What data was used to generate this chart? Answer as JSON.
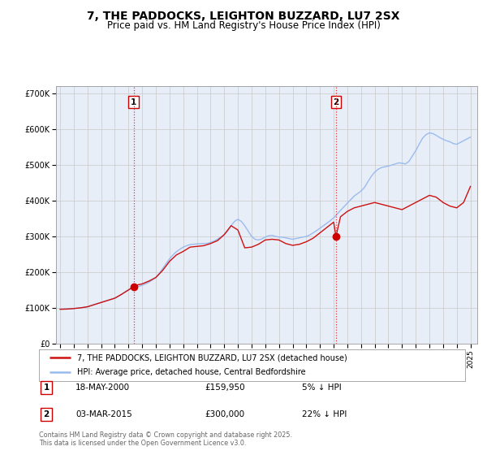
{
  "title": "7, THE PADDOCKS, LEIGHTON BUZZARD, LU7 2SX",
  "subtitle": "Price paid vs. HM Land Registry's House Price Index (HPI)",
  "title_fontsize": 10,
  "subtitle_fontsize": 8.5,
  "background_color": "#ffffff",
  "plot_bg_color": "#e8eef8",
  "grid_color": "#c8c8c8",
  "ylabel_values": [
    "£0",
    "£100K",
    "£200K",
    "£300K",
    "£400K",
    "£500K",
    "£600K",
    "£700K"
  ],
  "ytick_values": [
    0,
    100000,
    200000,
    300000,
    400000,
    500000,
    600000,
    700000
  ],
  "ylim": [
    0,
    720000
  ],
  "xlim_start": 1994.7,
  "xlim_end": 2025.5,
  "purchase1_x": 2000.38,
  "purchase1_y": 159950,
  "purchase1_label": "1",
  "purchase2_x": 2015.17,
  "purchase2_y": 300000,
  "purchase2_label": "2",
  "vline_color": "#ee3333",
  "vline_style": ":",
  "dot_color": "#cc0000",
  "dot_size": 6,
  "hpi_line_color": "#99bbee",
  "price_line_color": "#cc1111",
  "legend_label_price": "7, THE PADDOCKS, LEIGHTON BUZZARD, LU7 2SX (detached house)",
  "legend_label_hpi": "HPI: Average price, detached house, Central Bedfordshire",
  "annotation1_date": "18-MAY-2000",
  "annotation1_price": "£159,950",
  "annotation1_hpi": "5% ↓ HPI",
  "annotation2_date": "03-MAR-2015",
  "annotation2_price": "£300,000",
  "annotation2_hpi": "22% ↓ HPI",
  "footer_text": "Contains HM Land Registry data © Crown copyright and database right 2025.\nThis data is licensed under the Open Government Licence v3.0.",
  "hpi_data": {
    "years": [
      1995.0,
      1995.25,
      1995.5,
      1995.75,
      1996.0,
      1996.25,
      1996.5,
      1996.75,
      1997.0,
      1997.25,
      1997.5,
      1997.75,
      1998.0,
      1998.25,
      1998.5,
      1998.75,
      1999.0,
      1999.25,
      1999.5,
      1999.75,
      2000.0,
      2000.25,
      2000.5,
      2000.75,
      2001.0,
      2001.25,
      2001.5,
      2001.75,
      2002.0,
      2002.25,
      2002.5,
      2002.75,
      2003.0,
      2003.25,
      2003.5,
      2003.75,
      2004.0,
      2004.25,
      2004.5,
      2004.75,
      2005.0,
      2005.25,
      2005.5,
      2005.75,
      2006.0,
      2006.25,
      2006.5,
      2006.75,
      2007.0,
      2007.25,
      2007.5,
      2007.75,
      2008.0,
      2008.25,
      2008.5,
      2008.75,
      2009.0,
      2009.25,
      2009.5,
      2009.75,
      2010.0,
      2010.25,
      2010.5,
      2010.75,
      2011.0,
      2011.25,
      2011.5,
      2011.75,
      2012.0,
      2012.25,
      2012.5,
      2012.75,
      2013.0,
      2013.25,
      2013.5,
      2013.75,
      2014.0,
      2014.25,
      2014.5,
      2014.75,
      2015.0,
      2015.25,
      2015.5,
      2015.75,
      2016.0,
      2016.25,
      2016.5,
      2016.75,
      2017.0,
      2017.25,
      2017.5,
      2017.75,
      2018.0,
      2018.25,
      2018.5,
      2018.75,
      2019.0,
      2019.25,
      2019.5,
      2019.75,
      2020.0,
      2020.25,
      2020.5,
      2020.75,
      2021.0,
      2021.25,
      2021.5,
      2021.75,
      2022.0,
      2022.25,
      2022.5,
      2022.75,
      2023.0,
      2023.25,
      2023.5,
      2023.75,
      2024.0,
      2024.25,
      2024.5,
      2024.75,
      2025.0
    ],
    "values": [
      96000,
      96500,
      97000,
      97500,
      98000,
      99000,
      100000,
      101000,
      103000,
      106000,
      109000,
      112000,
      115000,
      118000,
      121000,
      124000,
      127000,
      132000,
      138000,
      145000,
      150000,
      155000,
      158000,
      160000,
      163000,
      167000,
      172000,
      178000,
      185000,
      196000,
      210000,
      224000,
      237000,
      248000,
      257000,
      264000,
      270000,
      274000,
      277000,
      278000,
      279000,
      279500,
      280000,
      280500,
      283000,
      287000,
      292000,
      298000,
      305000,
      315000,
      330000,
      342000,
      348000,
      342000,
      330000,
      315000,
      300000,
      292000,
      290000,
      293000,
      298000,
      302000,
      303000,
      300000,
      298000,
      298000,
      296000,
      294000,
      292000,
      294000,
      296000,
      298000,
      300000,
      304000,
      310000,
      316000,
      323000,
      330000,
      337000,
      344000,
      352000,
      362000,
      373000,
      383000,
      393000,
      403000,
      413000,
      420000,
      427000,
      437000,
      453000,
      468000,
      480000,
      488000,
      493000,
      495000,
      497000,
      500000,
      503000,
      506000,
      505000,
      503000,
      510000,
      525000,
      540000,
      558000,
      575000,
      585000,
      590000,
      588000,
      583000,
      577000,
      572000,
      568000,
      565000,
      560000,
      558000,
      563000,
      568000,
      573000,
      578000
    ]
  },
  "price_data": {
    "years": [
      1995.0,
      1995.5,
      1996.0,
      1996.5,
      1997.0,
      1997.5,
      1998.0,
      1998.5,
      1999.0,
      1999.5,
      2000.0,
      2000.38,
      2000.75,
      2001.0,
      2001.5,
      2002.0,
      2002.5,
      2003.0,
      2003.5,
      2004.0,
      2004.5,
      2005.0,
      2005.5,
      2006.0,
      2006.5,
      2007.0,
      2007.5,
      2008.0,
      2008.5,
      2009.0,
      2009.5,
      2010.0,
      2010.5,
      2011.0,
      2011.5,
      2012.0,
      2012.5,
      2013.0,
      2013.5,
      2014.0,
      2014.5,
      2015.0,
      2015.17,
      2015.5,
      2016.0,
      2016.5,
      2017.0,
      2017.5,
      2018.0,
      2018.5,
      2019.0,
      2019.5,
      2020.0,
      2020.5,
      2021.0,
      2021.5,
      2022.0,
      2022.5,
      2023.0,
      2023.5,
      2024.0,
      2024.5,
      2025.0
    ],
    "values": [
      96000,
      96500,
      98000,
      100000,
      103000,
      109000,
      115000,
      121000,
      127000,
      138000,
      150000,
      159950,
      165000,
      167000,
      175000,
      185000,
      205000,
      230000,
      248000,
      258000,
      270000,
      272000,
      274000,
      280000,
      288000,
      305000,
      330000,
      318000,
      268000,
      270000,
      278000,
      290000,
      292000,
      290000,
      280000,
      275000,
      278000,
      285000,
      295000,
      310000,
      325000,
      340000,
      300000,
      355000,
      370000,
      380000,
      385000,
      390000,
      395000,
      390000,
      385000,
      380000,
      375000,
      385000,
      395000,
      405000,
      415000,
      410000,
      395000,
      385000,
      380000,
      395000,
      440000
    ]
  }
}
